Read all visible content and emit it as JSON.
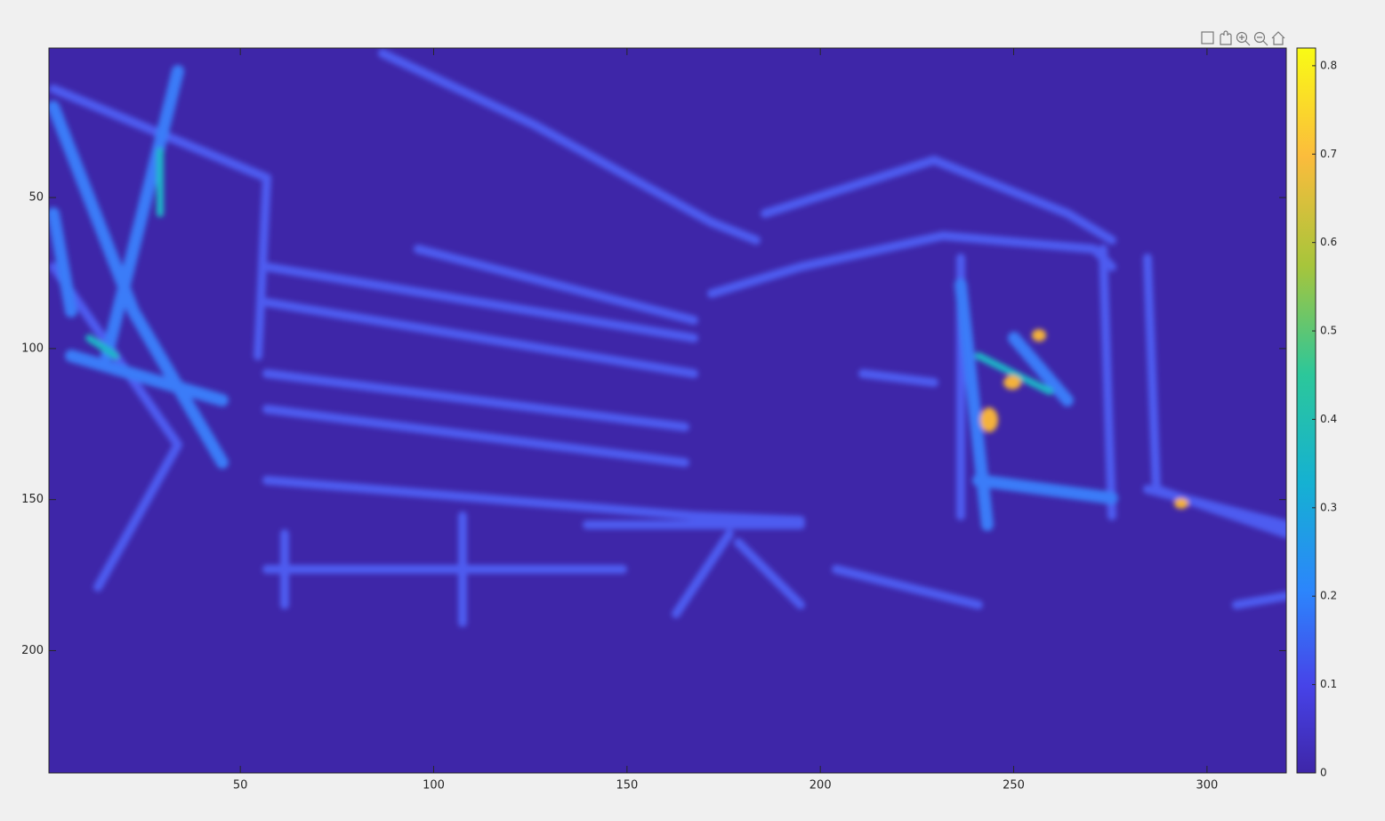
{
  "chart_data": {
    "type": "heatmap",
    "xlim": [
      0.5,
      320.5
    ],
    "ylim": [
      0.5,
      240.5
    ],
    "y_reversed": true,
    "xticks": [
      50,
      100,
      150,
      200,
      250,
      300
    ],
    "yticks": [
      50,
      100,
      150,
      200
    ],
    "colorbar": {
      "clim": [
        0,
        0.82
      ],
      "ticks": [
        0,
        0.1,
        0.2,
        0.3,
        0.4,
        0.5,
        0.6,
        0.7,
        0.8
      ]
    }
  }
}
